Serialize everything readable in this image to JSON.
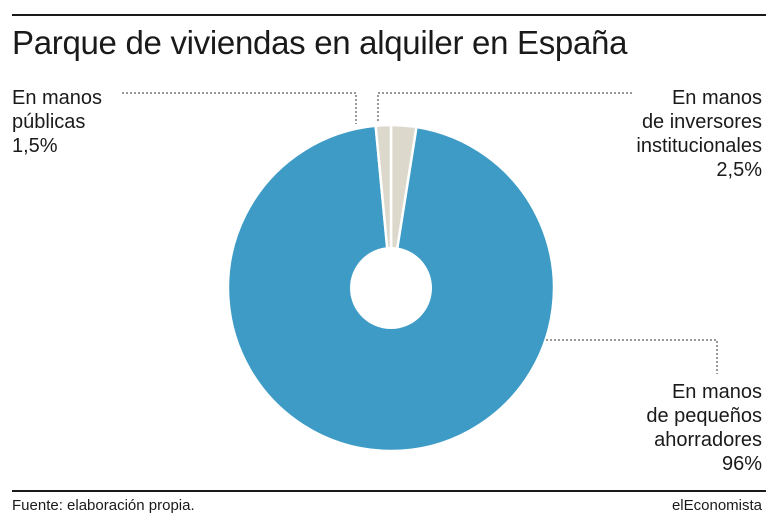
{
  "title": "Parque de viviendas en alquiler en España",
  "source": "Fuente: elaboración propia.",
  "brand": "elEconomista",
  "labels": {
    "public": {
      "line1": "En manos",
      "line2": "públicas",
      "value": "1,5%"
    },
    "institutional": {
      "line1": "En manos",
      "line2": "de inversores",
      "line3": "institucionales",
      "value": "2,5%"
    },
    "small": {
      "line1": "En manos",
      "line2": "de pequeños",
      "line3": "ahorradores",
      "value": "96%"
    }
  },
  "chart_data": {
    "type": "pie",
    "title": "Parque de viviendas en alquiler en España",
    "slices": [
      {
        "label": "En manos de inversores institucionales",
        "value": 2.5,
        "color": "#dcd8cc"
      },
      {
        "label": "En manos de pequeños ahorradores",
        "value": 96,
        "color": "#3d9bc6"
      },
      {
        "label": "En manos públicas",
        "value": 1.5,
        "color": "#dcd8cc"
      }
    ],
    "unit": "%",
    "legend": "none"
  }
}
